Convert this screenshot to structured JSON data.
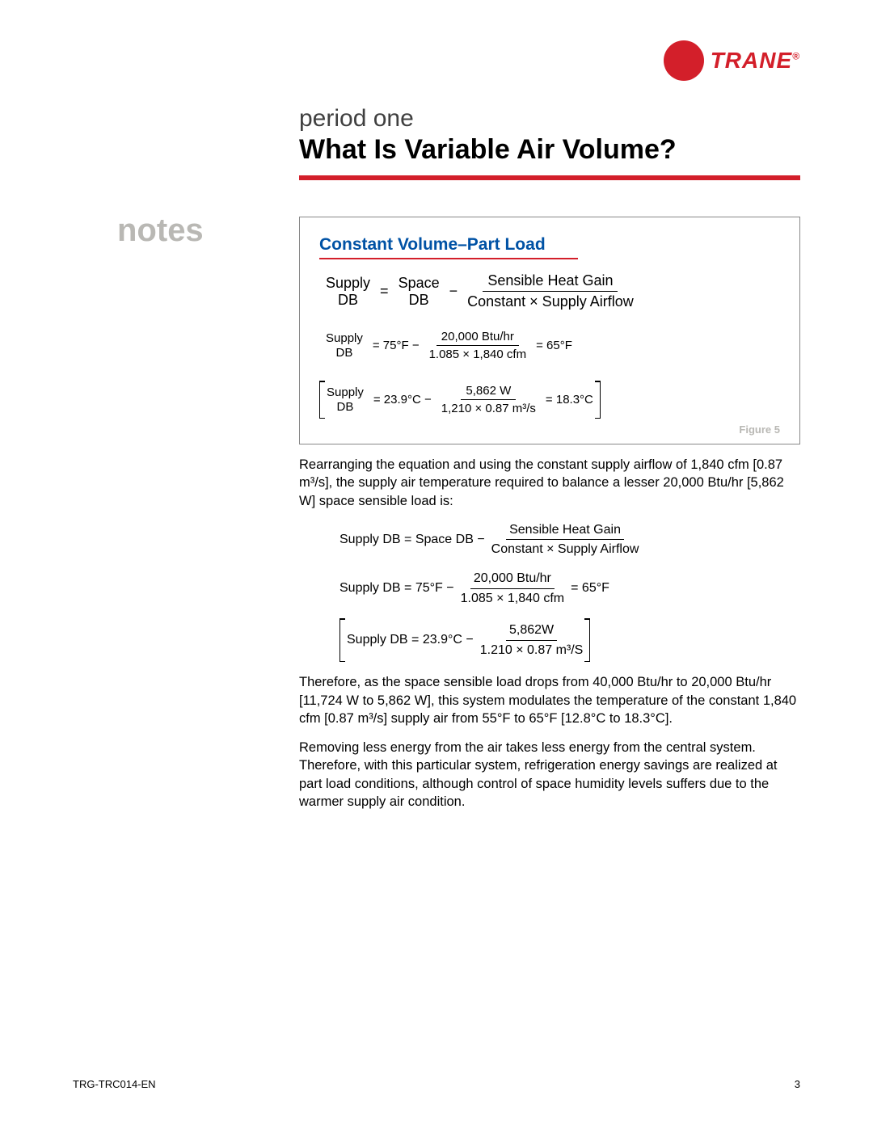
{
  "brand": {
    "name": "TRANE"
  },
  "header": {
    "period": "period one",
    "title": "What Is Variable Air Volume?"
  },
  "sidebar": {
    "notes": "notes"
  },
  "figure": {
    "title": "Constant Volume–Part Load",
    "caption": "Figure 5",
    "eq1": {
      "lhs_top": "Supply",
      "lhs_bot": "DB",
      "eq": "=",
      "mid_top": "Space",
      "mid_bot": "DB",
      "minus": "−",
      "frac_num": "Sensible Heat Gain",
      "frac_den": "Constant × Supply Airflow"
    },
    "eq2": {
      "lhs_top": "Supply",
      "lhs_bot": "DB",
      "eq": "= 75°F −",
      "frac_num": "20,000 Btu/hr",
      "frac_den": "1.085 × 1,840 cfm",
      "rhs": "=  65°F"
    },
    "eq3": {
      "lhs_top": "Supply",
      "lhs_bot": "DB",
      "eq": "= 23.9°C −",
      "frac_num": "5,862 W",
      "frac_den": "1,210 × 0.87 m³/s",
      "rhs": "=  18.3°C"
    }
  },
  "body": {
    "p1": "Rearranging the equation and using the constant supply airflow of 1,840 cfm [0.87 m³/s], the supply air temperature required to balance a lesser 20,000 Btu/hr [5,862 W] space sensible load is:",
    "eqA": {
      "lhs": "Supply DB  = Space DB −",
      "frac_num": "Sensible Heat Gain",
      "frac_den": "Constant × Supply Airflow"
    },
    "eqB": {
      "lhs": "Supply DB  =  75°F −",
      "frac_num": "20,000 Btu/hr",
      "frac_den": "1.085 × 1,840 cfm",
      "rhs": "= 65°F"
    },
    "eqC": {
      "lhs": "Supply DB = 23.9°C −",
      "frac_num": "5,862W",
      "frac_den": "1.210 × 0.87 m³/S"
    },
    "p2": "Therefore, as the space sensible load drops from 40,000 Btu/hr to 20,000 Btu/hr [11,724 W to 5,862 W], this system modulates the temperature of the constant 1,840 cfm [0.87 m³/s] supply air from 55°F to 65°F [12.8°C to 18.3°C].",
    "p3": "Removing less energy from the air takes less energy from the central system. Therefore, with this particular system, refrigeration energy savings are realized at part load conditions, although control of space humidity levels suffers due to the warmer supply air condition."
  },
  "footer": {
    "doc_id": "TRG-TRC014-EN",
    "page_num": "3"
  },
  "colors": {
    "brand_red": "#d31f2a",
    "title_blue": "#0052a5",
    "muted": "#b9b8b4"
  }
}
